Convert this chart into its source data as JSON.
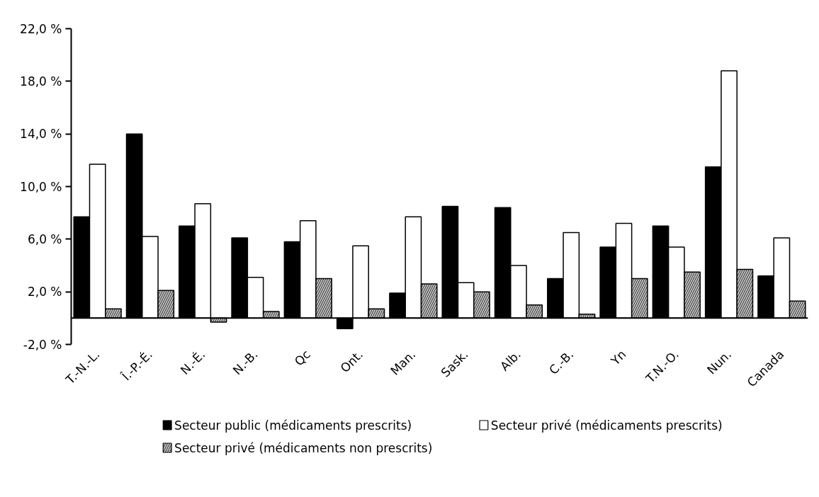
{
  "chart_data": {
    "type": "bar",
    "categories": [
      "T.-N.-L.",
      "Î.-P.-É.",
      "N.-É.",
      "N.-B.",
      "Qc",
      "Ont.",
      "Man.",
      "Sask.",
      "Alb.",
      "C.-B.",
      "Yn",
      "T.N.-O.",
      "Nun.",
      "Canada"
    ],
    "series": [
      {
        "name": "Secteur public (médicaments prescrits)",
        "color": "#000000",
        "values": [
          7.7,
          14.0,
          7.0,
          6.1,
          5.8,
          -0.8,
          1.9,
          8.5,
          8.4,
          3.0,
          5.4,
          7.0,
          11.5,
          3.2
        ]
      },
      {
        "name": "Secteur privé (médicaments prescrits)",
        "color": "#ffffff",
        "values": [
          11.7,
          6.2,
          8.7,
          3.1,
          7.4,
          5.5,
          7.7,
          2.7,
          4.0,
          6.5,
          7.2,
          5.4,
          18.8,
          6.1
        ]
      },
      {
        "name": "Secteur privé (médicaments non prescrits)",
        "color": "#c0c0c0",
        "values": [
          0.7,
          2.1,
          -0.3,
          0.5,
          3.0,
          0.7,
          2.6,
          2.0,
          1.0,
          0.3,
          3.0,
          3.5,
          3.7,
          1.3
        ]
      }
    ],
    "ylim": [
      -2,
      22
    ],
    "yticks": [
      {
        "value": -2,
        "label": "-2,0 %"
      },
      {
        "value": 2,
        "label": "2,0 %"
      },
      {
        "value": 6,
        "label": "6,0 %"
      },
      {
        "value": 10,
        "label": "10,0 %"
      },
      {
        "value": 14,
        "label": "14,0 %"
      },
      {
        "value": 18,
        "label": "18,0 %"
      },
      {
        "value": 22,
        "label": "22,0 %"
      }
    ],
    "grid": false,
    "legend": "bottom"
  }
}
